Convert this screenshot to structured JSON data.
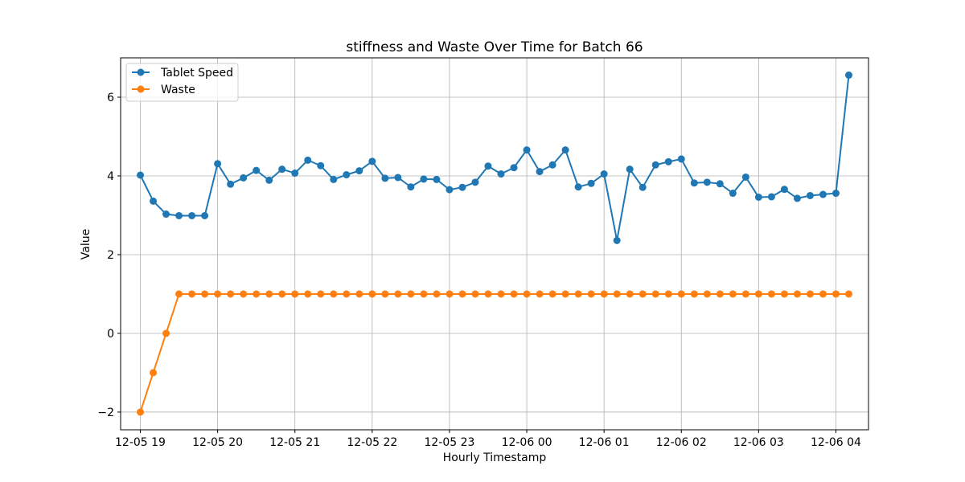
{
  "chart_data": {
    "type": "line",
    "title": "stiffness and Waste Over Time for Batch 66",
    "xlabel": "Hourly Timestamp",
    "ylabel": "Value",
    "ylim": [
      -2.45,
      7.0
    ],
    "yticks": [
      -2,
      0,
      2,
      4,
      6
    ],
    "ytick_labels": [
      "−2",
      "0",
      "2",
      "4",
      "6"
    ],
    "x_start": "12-05 19:00",
    "x_step_minutes": 10,
    "xlim_minutes": [
      -15.3,
      565.3
    ],
    "xticks_minutes": [
      0,
      60,
      120,
      180,
      240,
      300,
      360,
      420,
      480,
      540
    ],
    "xtick_labels": [
      "12-05 19",
      "12-05 20",
      "12-05 21",
      "12-05 22",
      "12-05 23",
      "12-06 00",
      "12-06 01",
      "12-06 02",
      "12-06 03",
      "12-06 04"
    ],
    "grid": true,
    "legend_position": "top-left",
    "series": [
      {
        "name": "Tablet Speed",
        "color": "#1f77b4",
        "values": [
          4.02,
          3.36,
          3.03,
          2.99,
          2.99,
          2.99,
          4.31,
          3.79,
          3.95,
          4.14,
          3.89,
          4.17,
          4.07,
          4.4,
          4.26,
          3.91,
          4.03,
          4.13,
          4.37,
          3.94,
          3.96,
          3.72,
          3.92,
          3.91,
          3.65,
          3.71,
          3.84,
          4.25,
          4.05,
          4.21,
          4.66,
          4.11,
          4.28,
          4.66,
          3.72,
          3.81,
          4.05,
          2.36,
          4.17,
          3.71,
          4.28,
          4.36,
          4.43,
          3.82,
          3.84,
          3.8,
          3.56,
          3.97,
          3.46,
          3.47,
          3.66,
          3.43,
          3.5,
          3.53,
          3.56,
          6.56
        ]
      },
      {
        "name": "Waste",
        "color": "#ff7f0e",
        "values": [
          -2,
          -1,
          0,
          1,
          1,
          1,
          1,
          1,
          1,
          1,
          1,
          1,
          1,
          1,
          1,
          1,
          1,
          1,
          1,
          1,
          1,
          1,
          1,
          1,
          1,
          1,
          1,
          1,
          1,
          1,
          1,
          1,
          1,
          1,
          1,
          1,
          1,
          1,
          1,
          1,
          1,
          1,
          1,
          1,
          1,
          1,
          1,
          1,
          1,
          1,
          1,
          1,
          1,
          1,
          1,
          1
        ]
      }
    ]
  }
}
